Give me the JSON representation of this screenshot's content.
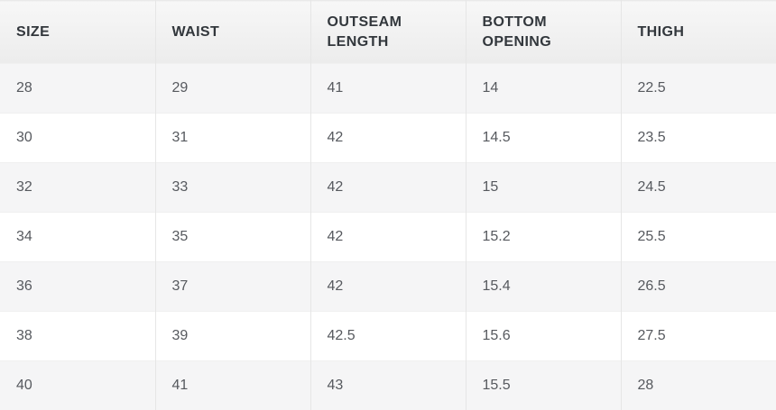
{
  "table": {
    "columns": [
      {
        "key": "size",
        "label": "SIZE"
      },
      {
        "key": "waist",
        "label": "WAIST"
      },
      {
        "key": "outseam_length",
        "label": "OUTSEAM LENGTH"
      },
      {
        "key": "bottom_opening",
        "label": "BOTTOM OPENING"
      },
      {
        "key": "thigh",
        "label": "THIGH"
      }
    ],
    "rows": [
      [
        "28",
        "29",
        "41",
        "14",
        "22.5"
      ],
      [
        "30",
        "31",
        "42",
        "14.5",
        "23.5"
      ],
      [
        "32",
        "33",
        "42",
        "15",
        "24.5"
      ],
      [
        "34",
        "35",
        "42",
        "15.2",
        "25.5"
      ],
      [
        "36",
        "37",
        "42",
        "15.4",
        "26.5"
      ],
      [
        "38",
        "39",
        "42.5",
        "15.6",
        "27.5"
      ],
      [
        "40",
        "41",
        "43",
        "15.5",
        "28"
      ]
    ]
  },
  "chart_data": {
    "type": "table",
    "title": "",
    "columns": [
      "SIZE",
      "WAIST",
      "OUTSEAM LENGTH",
      "BOTTOM OPENING",
      "THIGH"
    ],
    "rows": [
      [
        28,
        29,
        41,
        14,
        22.5
      ],
      [
        30,
        31,
        42,
        14.5,
        23.5
      ],
      [
        32,
        33,
        42,
        15,
        24.5
      ],
      [
        34,
        35,
        42,
        15.2,
        25.5
      ],
      [
        36,
        37,
        42,
        15.4,
        26.5
      ],
      [
        38,
        39,
        42.5,
        15.6,
        27.5
      ],
      [
        40,
        41,
        43,
        15.5,
        28
      ]
    ],
    "layout_hints": {
      "striped_rows": true,
      "first_data_row_shaded": true
    }
  },
  "colors": {
    "header_bg_top": "#f7f7f7",
    "header_bg_bottom": "#ececec",
    "header_text": "#32373c",
    "cell_text": "#56595e",
    "row_alt_bg": "#f5f5f6",
    "row_bg": "#ffffff",
    "column_border": "#e6e6e6",
    "row_border": "#f0f0f0"
  }
}
